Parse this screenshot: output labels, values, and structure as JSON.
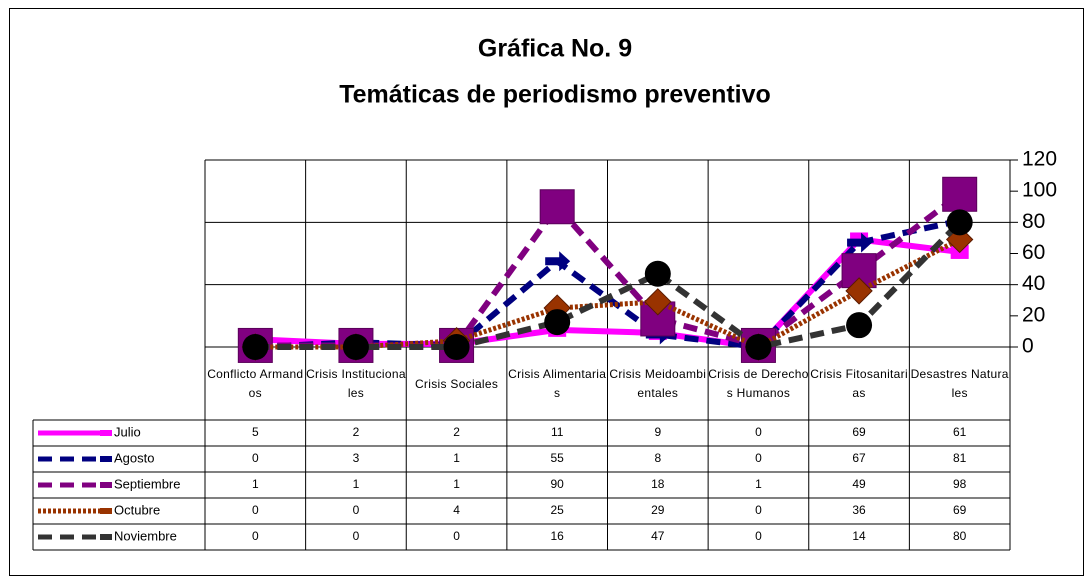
{
  "chart_data": {
    "type": "line",
    "title": "Gráfica No. 9",
    "subtitle": "Temáticas de periodismo preventivo",
    "categories": [
      "Conflicto Armandos",
      "Crisis Institucionales",
      "Crisis Sociales",
      "Crisis Alimentarias",
      "Crisis Meidoambientales",
      "Crisis de Derechos Humanos",
      "Crisis Fitosanitarias",
      "Desastres Naturales"
    ],
    "series": [
      {
        "name": "Julio",
        "color": "#ff00ff",
        "marker": "square",
        "dash": "solid",
        "values": [
          5,
          2,
          2,
          11,
          9,
          0,
          69,
          61
        ]
      },
      {
        "name": "Agosto",
        "color": "#000080",
        "marker": "arrow",
        "dash": "dashed",
        "values": [
          0,
          3,
          1,
          55,
          8,
          0,
          67,
          81
        ]
      },
      {
        "name": "Septiembre",
        "color": "#800080",
        "marker": "bigsquare",
        "dash": "dashed",
        "values": [
          1,
          1,
          1,
          90,
          18,
          1,
          49,
          98
        ]
      },
      {
        "name": "Octubre",
        "color": "#993300",
        "marker": "diamond",
        "dash": "dotted",
        "values": [
          0,
          0,
          4,
          25,
          29,
          0,
          36,
          69
        ]
      },
      {
        "name": "Noviembre",
        "color": "#333333",
        "marker": "circle",
        "dash": "dashed",
        "values": [
          0,
          0,
          0,
          16,
          47,
          0,
          14,
          80
        ]
      }
    ],
    "ylim": [
      0,
      120
    ],
    "yticks": [
      0,
      20,
      40,
      60,
      80,
      100,
      120
    ],
    "grid": true,
    "data_table": true
  }
}
